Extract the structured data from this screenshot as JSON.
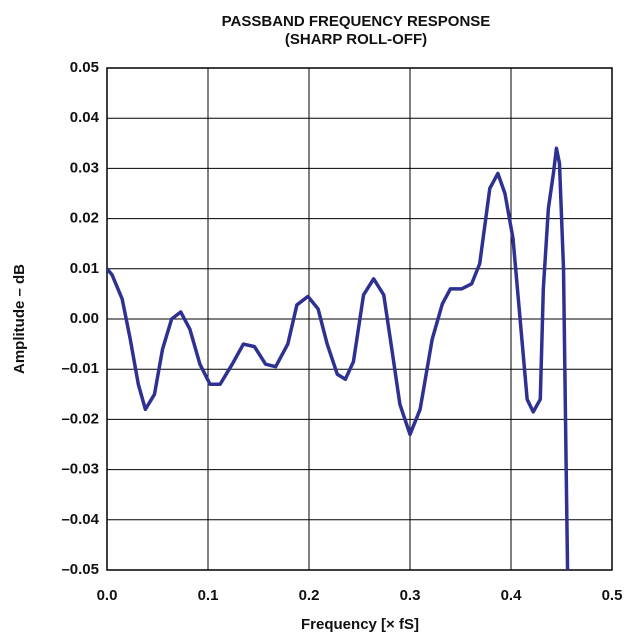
{
  "chart_data": {
    "type": "line",
    "title": "PASSBAND FREQUENCY RESPONSE",
    "subtitle": "(SHARP ROLL-OFF)",
    "x_label": "Frequency [× fS]",
    "y_label": "Amplitude – dB",
    "xlim": [
      0,
      0.5
    ],
    "ylim": [
      -0.05,
      0.05
    ],
    "xticks": [
      {
        "value": 0,
        "label": "0.0"
      },
      0.1,
      0.2,
      0.3,
      0.4,
      0.5
    ],
    "yticks": [
      0.05,
      0.04,
      0.03,
      0.02,
      0.01,
      {
        "value": 0,
        "label": "0.00"
      },
      {
        "value": -0.01,
        "label": "–0.01"
      },
      {
        "value": -0.02,
        "label": "–0.02"
      },
      {
        "value": -0.03,
        "label": "–0.03"
      },
      {
        "value": -0.04,
        "label": "–0.04"
      },
      {
        "value": -0.05,
        "label": "–0.05"
      }
    ],
    "grid": true,
    "series": [
      {
        "color": "#2e3192",
        "x": [
          0,
          0.005,
          0.015,
          0.023,
          0.031,
          0.038,
          0.047,
          0.055,
          0.064,
          0.073,
          0.082,
          0.092,
          0.102,
          0.112,
          0.124,
          0.135,
          0.146,
          0.157,
          0.167,
          0.179,
          0.188,
          0.199,
          0.209,
          0.218,
          0.228,
          0.236,
          0.244,
          0.254,
          0.264,
          0.274,
          0.282,
          0.29,
          0.3,
          0.31,
          0.322,
          0.332,
          0.34,
          0.351,
          0.361,
          0.369,
          0.379,
          0.387,
          0.394,
          0.402,
          0.409,
          0.416,
          0.422,
          0.429,
          0.432,
          0.437,
          0.442,
          0.445,
          0.448,
          0.452,
          0.4545,
          0.456
        ],
        "values": [
          0.01,
          0.0088,
          0.004,
          -0.004,
          -0.013,
          -0.018,
          -0.015,
          -0.006,
          0,
          0.0014,
          -0.002,
          -0.009,
          -0.013,
          -0.013,
          -0.009,
          -0.005,
          -0.0055,
          -0.009,
          -0.0095,
          -0.005,
          0.0028,
          0.0045,
          0.002,
          -0.005,
          -0.011,
          -0.012,
          -0.0085,
          0.0048,
          0.008,
          0.0048,
          -0.006,
          -0.017,
          -0.023,
          -0.018,
          -0.004,
          0.003,
          0.006,
          0.006,
          0.007,
          0.011,
          0.026,
          0.029,
          0.025,
          0.016,
          0,
          -0.016,
          -0.0185,
          -0.016,
          0.006,
          0.022,
          0.029,
          0.034,
          0.031,
          0.01,
          -0.028,
          -0.05
        ]
      }
    ]
  }
}
